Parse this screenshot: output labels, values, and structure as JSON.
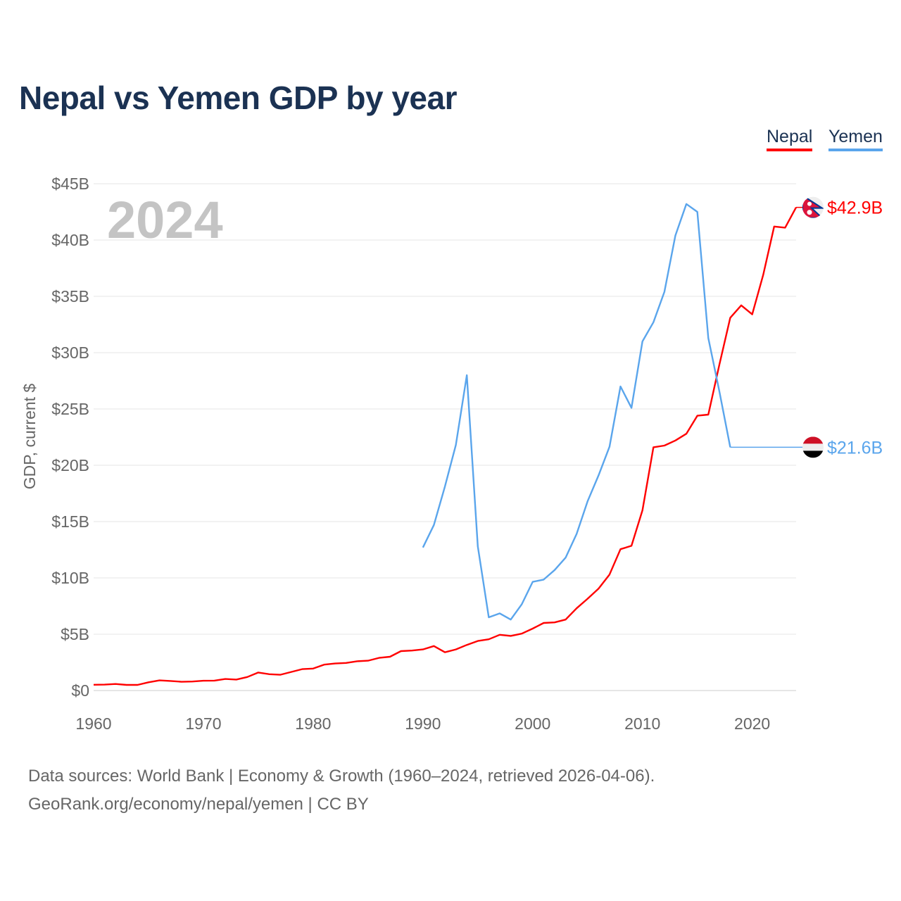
{
  "title": "Nepal vs Yemen GDP by year",
  "legend": [
    {
      "label": "Nepal",
      "color": "#ff0000"
    },
    {
      "label": "Yemen",
      "color": "#5aa5ec"
    }
  ],
  "year_label": "2024",
  "source_line1": "Data sources: World Bank | Economy & Growth (1960–2024, retrieved 2026-04-06).",
  "source_line2": "GeoRank.org/economy/nepal/yemen | CC BY",
  "chart_data": {
    "type": "line",
    "title": "Nepal vs Yemen GDP by year",
    "xlabel": "",
    "ylabel": "GDP, current $",
    "xlim": [
      1960,
      2024
    ],
    "ylim": [
      0,
      45
    ],
    "x_ticks": [
      1960,
      1970,
      1980,
      1990,
      2000,
      2010,
      2020
    ],
    "y_ticks": [
      0,
      5,
      10,
      15,
      20,
      25,
      30,
      35,
      40,
      45
    ],
    "y_tick_labels": [
      "$0",
      "$5B",
      "$10B",
      "$15B",
      "$20B",
      "$25B",
      "$30B",
      "$35B",
      "$40B",
      "$45B"
    ],
    "grid": true,
    "legend_position": "top-right",
    "units": "billion US$",
    "series": [
      {
        "name": "Nepal",
        "color": "#ff0000",
        "end_label": "$42.9B",
        "flag": "nepal-flag",
        "start": 1960,
        "values": [
          0.51,
          0.53,
          0.58,
          0.5,
          0.5,
          0.73,
          0.9,
          0.85,
          0.78,
          0.8,
          0.87,
          0.88,
          1.03,
          0.97,
          1.2,
          1.6,
          1.45,
          1.4,
          1.65,
          1.9,
          1.95,
          2.3,
          2.4,
          2.45,
          2.6,
          2.65,
          2.9,
          3.0,
          3.5,
          3.55,
          3.65,
          3.95,
          3.4,
          3.65,
          4.05,
          4.4,
          4.55,
          4.95,
          4.85,
          5.05,
          5.5,
          6.0,
          6.05,
          6.3,
          7.3,
          8.15,
          9.05,
          10.3,
          12.55,
          12.85,
          16.0,
          21.6,
          21.75,
          22.2,
          22.8,
          24.4,
          24.5,
          28.9,
          33.1,
          34.2,
          33.4,
          36.9,
          41.2,
          41.1,
          42.9
        ]
      },
      {
        "name": "Yemen",
        "color": "#5aa5ec",
        "end_label": "$21.6B",
        "flag": "yemen-flag",
        "start": 1990,
        "values": [
          12.7,
          14.7,
          18.1,
          21.8,
          28.0,
          12.8,
          6.5,
          6.85,
          6.3,
          7.65,
          9.65,
          9.85,
          10.7,
          11.8,
          13.9,
          16.8,
          19.1,
          21.65,
          27.0,
          25.1,
          31.0,
          32.7,
          35.4,
          40.4,
          43.2,
          42.5,
          31.3,
          26.6,
          21.6
        ]
      }
    ]
  }
}
